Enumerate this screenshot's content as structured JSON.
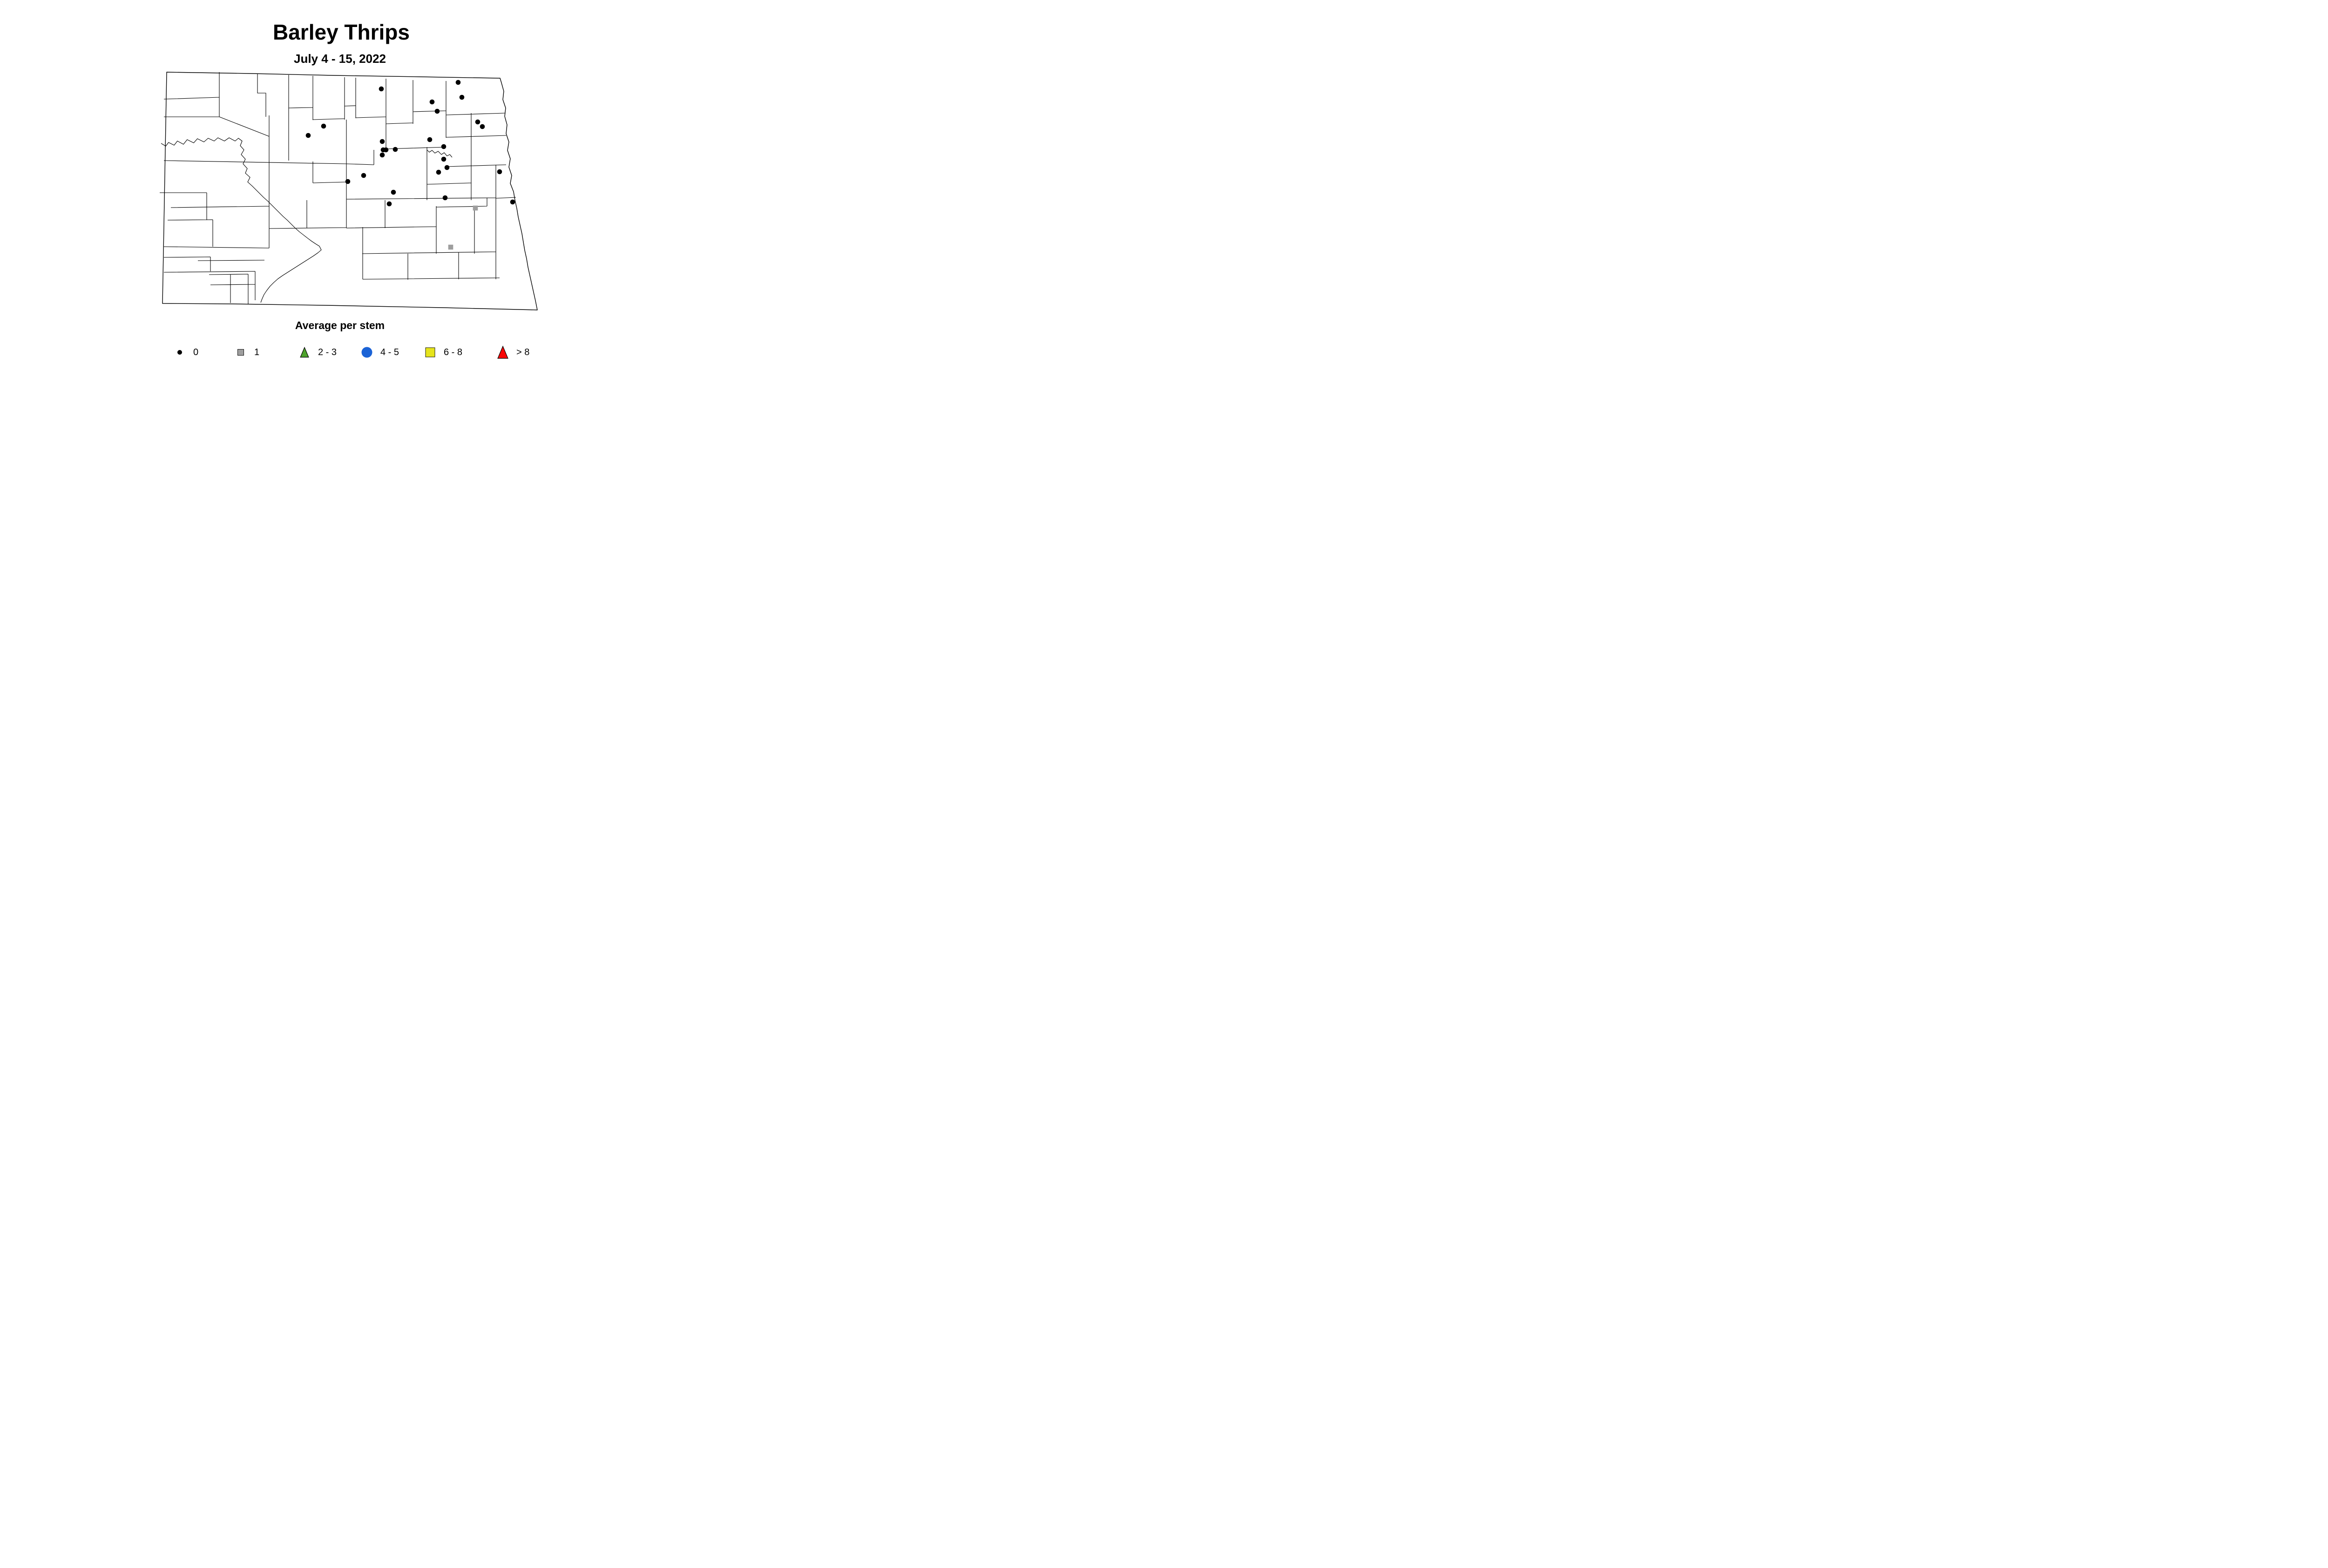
{
  "title": "Barley Thrips",
  "subtitle": "July 4 - 15, 2022",
  "legend": {
    "title": "Average per stem",
    "items": [
      {
        "label": "0",
        "shape": "dot",
        "color": "#000000",
        "size": 10
      },
      {
        "label": "1",
        "shape": "square",
        "color": "#9E9E9E",
        "size": 13
      },
      {
        "label": "2 - 3",
        "shape": "triangle",
        "color": "#4DA22C",
        "size": 21
      },
      {
        "label": "4 - 5",
        "shape": "circle",
        "color": "#1B63D6",
        "size": 23
      },
      {
        "label": "6 - 8",
        "shape": "square",
        "color": "#E6E41C",
        "size": 20
      },
      {
        "label": "> 8",
        "shape": "triangle",
        "color": "#F90505",
        "size": 26
      }
    ]
  },
  "map": {
    "region": "North Dakota counties",
    "marker_colors": {
      "zero_dot": "#000000",
      "one_square": "#9E9E9E"
    }
  },
  "chart_data": {
    "type": "scatter",
    "title": "Barley Thrips",
    "subtitle": "July 4 - 15, 2022",
    "legend_title": "Average per stem",
    "basemap": "North Dakota county outline map",
    "legend_classes": [
      "0",
      "1",
      "2 - 3",
      "4 - 5",
      "6 - 8",
      "> 8"
    ],
    "coordinate_space": "page pixels, 1540x803",
    "series": [
      {
        "name": "0",
        "symbol": "black-dot",
        "points": [
          [
            984,
            177
          ],
          [
            819,
            191
          ],
          [
            992,
            209
          ],
          [
            928,
            219
          ],
          [
            939,
            239
          ],
          [
            1026,
            262
          ],
          [
            1036,
            272
          ],
          [
            695,
            271
          ],
          [
            662,
            291
          ],
          [
            923,
            300
          ],
          [
            821,
            304
          ],
          [
            953,
            315
          ],
          [
            849,
            321
          ],
          [
            823,
            322
          ],
          [
            829,
            322
          ],
          [
            821,
            333
          ],
          [
            953,
            342
          ],
          [
            960,
            360
          ],
          [
            942,
            370
          ],
          [
            1073,
            369
          ],
          [
            781,
            377
          ],
          [
            747,
            390
          ],
          [
            845,
            413
          ],
          [
            956,
            425
          ],
          [
            836,
            438
          ],
          [
            1101,
            434
          ]
        ]
      },
      {
        "name": "1",
        "symbol": "gray-square",
        "points": [
          [
            1021,
            447
          ],
          [
            968,
            531
          ]
        ]
      }
    ]
  }
}
